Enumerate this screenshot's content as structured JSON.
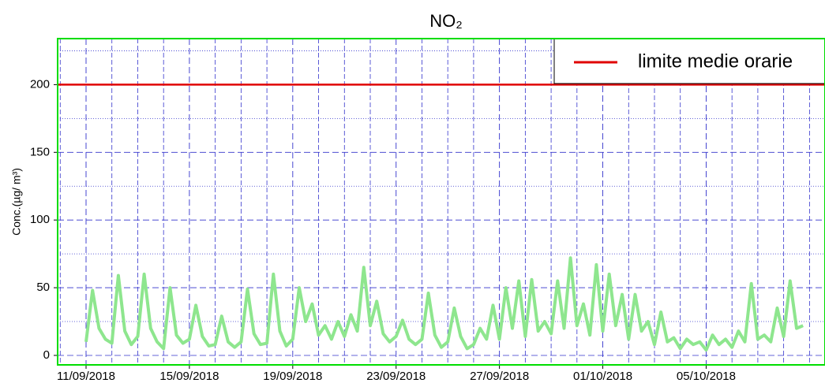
{
  "chart_data": {
    "type": "line",
    "title": "NO₂",
    "y_label": "Conc.(µg/ m³)",
    "xlim": [
      -1.1,
      28.6
    ],
    "xticks": [
      {
        "value": 0,
        "label": "11/09/2018"
      },
      {
        "value": 4,
        "label": "15/09/2018"
      },
      {
        "value": 8,
        "label": "19/09/2018"
      },
      {
        "value": 12,
        "label": "23/09/2018"
      },
      {
        "value": 16,
        "label": "27/09/2018"
      },
      {
        "value": 20,
        "label": "01/10/2018"
      },
      {
        "value": 24,
        "label": "05/10/2018"
      }
    ],
    "xminorticks": [
      -1,
      1,
      2,
      3,
      5,
      6,
      7,
      9,
      10,
      11,
      13,
      14,
      15,
      17,
      18,
      19,
      21,
      22,
      23,
      25,
      26,
      27,
      28
    ],
    "ylim": [
      -7,
      234
    ],
    "yticks": [
      0,
      50,
      100,
      150,
      200
    ],
    "yminorticks": [
      25,
      75,
      125,
      175,
      225
    ],
    "grid": true,
    "hlines": [
      {
        "name": "limite medie orarie",
        "value": 200,
        "color": "#e00000"
      }
    ],
    "legend": "upper right",
    "series": [
      {
        "color": "#8ee68e",
        "x": [
          0,
          0.25,
          0.5,
          0.75,
          1,
          1.25,
          1.5,
          1.75,
          2,
          2.25,
          2.5,
          2.75,
          3,
          3.25,
          3.5,
          3.75,
          4,
          4.25,
          4.5,
          4.75,
          5,
          5.25,
          5.5,
          5.75,
          6,
          6.25,
          6.5,
          6.75,
          7,
          7.25,
          7.5,
          7.75,
          8,
          8.25,
          8.5,
          8.75,
          9,
          9.25,
          9.5,
          9.75,
          10,
          10.25,
          10.5,
          10.75,
          11,
          11.25,
          11.5,
          11.75,
          12,
          12.25,
          12.5,
          12.75,
          13,
          13.25,
          13.5,
          13.75,
          14,
          14.25,
          14.5,
          14.75,
          15,
          15.25,
          15.5,
          15.75,
          16,
          16.25,
          16.5,
          16.75,
          17,
          17.25,
          17.5,
          17.75,
          18,
          18.25,
          18.5,
          18.75,
          19,
          19.25,
          19.5,
          19.75,
          20,
          20.25,
          20.5,
          20.75,
          21,
          21.25,
          21.5,
          21.75,
          22,
          22.25,
          22.5,
          22.75,
          23,
          23.25,
          23.5,
          23.75,
          24,
          24.25,
          24.5,
          24.75,
          25,
          25.25,
          25.5,
          25.75,
          26,
          26.25,
          26.5,
          26.75,
          27,
          27.25,
          27.5,
          27.75
        ],
        "values": [
          10,
          48,
          20,
          12,
          9,
          59,
          18,
          8,
          14,
          60,
          20,
          10,
          5,
          50,
          15,
          9,
          12,
          37,
          14,
          7,
          8,
          29,
          10,
          6,
          10,
          49,
          16,
          8,
          9,
          60,
          18,
          7,
          12,
          50,
          25,
          38,
          15,
          22,
          12,
          25,
          14,
          30,
          18,
          65,
          22,
          40,
          16,
          10,
          14,
          26,
          12,
          8,
          12,
          46,
          15,
          6,
          10,
          35,
          14,
          5,
          8,
          20,
          12,
          37,
          12,
          50,
          20,
          55,
          14,
          56,
          18,
          25,
          16,
          55,
          20,
          72,
          22,
          38,
          15,
          67,
          18,
          60,
          22,
          45,
          12,
          45,
          18,
          25,
          8,
          32,
          10,
          13,
          5,
          12,
          8,
          10,
          4,
          15,
          8,
          12,
          6,
          18,
          10,
          53,
          12,
          15,
          10,
          35,
          14,
          55,
          20,
          22
        ]
      }
    ]
  }
}
